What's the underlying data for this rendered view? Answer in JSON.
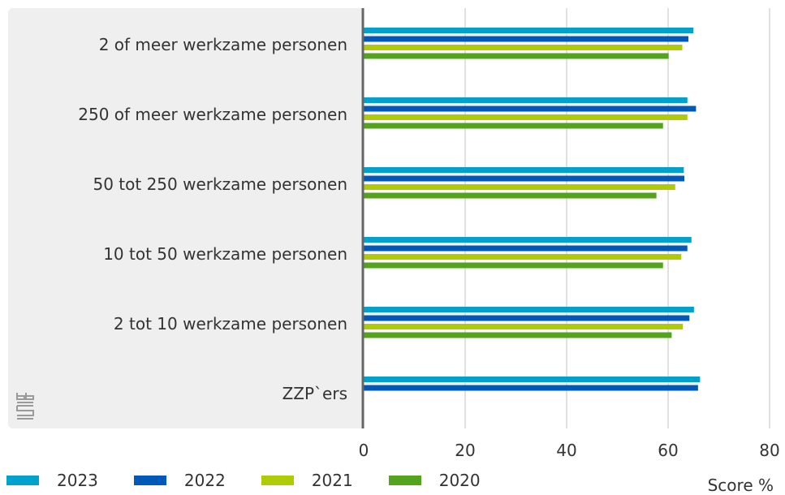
{
  "chart_data": {
    "type": "bar",
    "orientation": "horizontal",
    "categories": [
      "2 of meer werkzame personen",
      "250 of meer werkzame personen",
      "50 tot 250 werkzame personen",
      "10 tot 50 werkzame personen",
      "2 tot 10 werkzame personen",
      "ZZP`ers"
    ],
    "series": [
      {
        "name": "2023",
        "color": "#00a1cd",
        "values": [
          65.0,
          63.8,
          63.1,
          64.6,
          65.1,
          66.3
        ]
      },
      {
        "name": "2022",
        "color": "#0058b8",
        "values": [
          64.0,
          65.5,
          63.2,
          63.8,
          64.2,
          65.9
        ]
      },
      {
        "name": "2021",
        "color": "#afcb05",
        "values": [
          62.8,
          63.8,
          61.4,
          62.6,
          62.9,
          null
        ]
      },
      {
        "name": "2020",
        "color": "#53a31d",
        "values": [
          60.1,
          59.0,
          57.7,
          59.0,
          60.7,
          null
        ]
      }
    ],
    "xlim": [
      0,
      80
    ],
    "xticks": [
      0,
      20,
      40,
      60,
      80
    ],
    "xlabel": "Score %",
    "grid": true,
    "legend_position": "bottom"
  }
}
